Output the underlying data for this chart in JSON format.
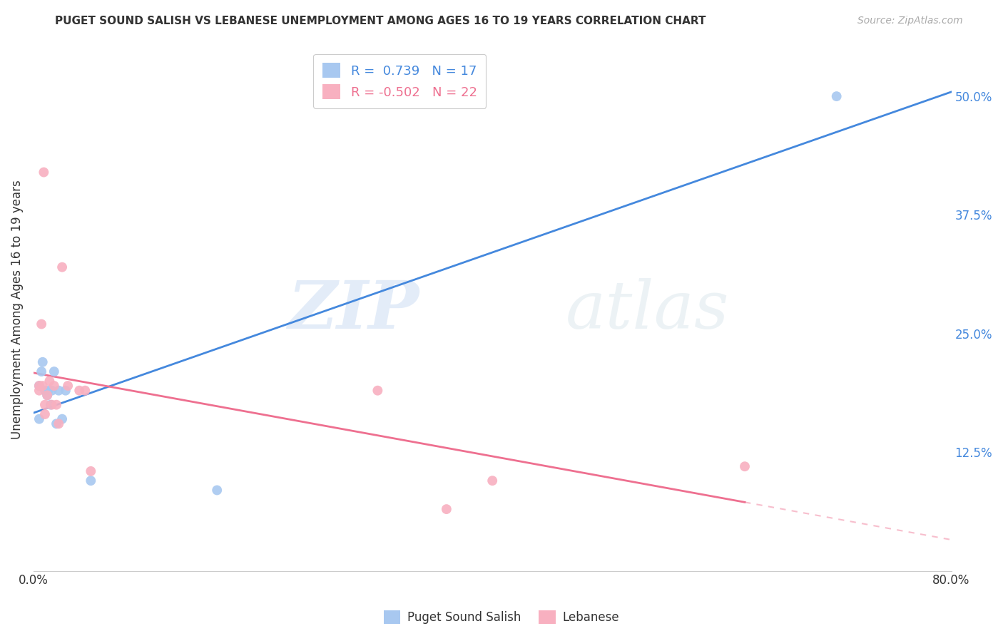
{
  "title": "PUGET SOUND SALISH VS LEBANESE UNEMPLOYMENT AMONG AGES 16 TO 19 YEARS CORRELATION CHART",
  "source": "Source: ZipAtlas.com",
  "ylabel": "Unemployment Among Ages 16 to 19 years",
  "xlim": [
    0.0,
    0.8
  ],
  "ylim": [
    0.0,
    0.55
  ],
  "xticks": [
    0.0,
    0.1,
    0.2,
    0.3,
    0.4,
    0.5,
    0.6,
    0.7,
    0.8
  ],
  "yticks_right": [
    0.0,
    0.125,
    0.25,
    0.375,
    0.5
  ],
  "ytick_right_labels": [
    "",
    "12.5%",
    "25.0%",
    "37.5%",
    "50.0%"
  ],
  "watermark_zip": "ZIP",
  "watermark_atlas": "atlas",
  "blue_R": 0.739,
  "blue_N": 17,
  "pink_R": -0.502,
  "pink_N": 22,
  "blue_color": "#a8c8f0",
  "pink_color": "#f8b0c0",
  "blue_line_color": "#4488dd",
  "pink_line_color": "#ee7090",
  "legend_label_blue": "Puget Sound Salish",
  "legend_label_pink": "Lebanese",
  "blue_x": [
    0.005,
    0.005,
    0.007,
    0.008,
    0.01,
    0.012,
    0.013,
    0.015,
    0.016,
    0.018,
    0.02,
    0.022,
    0.025,
    0.028,
    0.05,
    0.16,
    0.7
  ],
  "blue_y": [
    0.16,
    0.195,
    0.21,
    0.22,
    0.19,
    0.185,
    0.19,
    0.175,
    0.19,
    0.21,
    0.155,
    0.19,
    0.16,
    0.19,
    0.095,
    0.085,
    0.5
  ],
  "pink_x": [
    0.005,
    0.005,
    0.007,
    0.008,
    0.009,
    0.01,
    0.01,
    0.012,
    0.014,
    0.016,
    0.018,
    0.02,
    0.022,
    0.025,
    0.03,
    0.04,
    0.045,
    0.05,
    0.3,
    0.36,
    0.4,
    0.62
  ],
  "pink_y": [
    0.19,
    0.195,
    0.26,
    0.195,
    0.42,
    0.165,
    0.175,
    0.185,
    0.2,
    0.175,
    0.195,
    0.175,
    0.155,
    0.32,
    0.195,
    0.19,
    0.19,
    0.105,
    0.19,
    0.065,
    0.095,
    0.11
  ],
  "background_color": "#ffffff",
  "grid_color": "#cccccc",
  "grid_linestyle": "--",
  "title_color": "#333333",
  "source_color": "#aaaaaa",
  "axis_label_color": "#333333",
  "tick_color": "#333333",
  "right_tick_color": "#4488dd"
}
